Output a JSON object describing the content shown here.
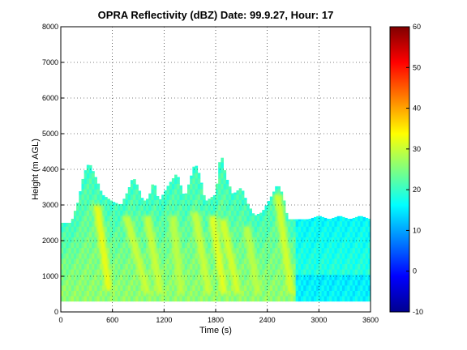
{
  "chart_data": {
    "type": "heatmap",
    "title": "OPRA Reflectivity (dBZ)  Date: 99.9.27, Hour: 17",
    "xlabel": "Time (s)",
    "ylabel": "Height (m AGL)",
    "xlim": [
      0,
      3600
    ],
    "ylim": [
      0,
      8000
    ],
    "x_ticks": [
      "0",
      "600",
      "1200",
      "1800",
      "2400",
      "3000",
      "3600"
    ],
    "y_ticks": [
      "0",
      "1000",
      "2000",
      "3000",
      "4000",
      "5000",
      "6000",
      "7000",
      "8000"
    ],
    "grid": "dotted",
    "colorbar": {
      "range": [
        -10,
        60
      ],
      "ticks": [
        "-10",
        "0",
        "10",
        "20",
        "30",
        "40",
        "50",
        "60"
      ],
      "colormap": "jet"
    },
    "echo_top_profile": [
      {
        "t": 0,
        "top": 2500
      },
      {
        "t": 120,
        "top": 2500
      },
      {
        "t": 200,
        "top": 3100
      },
      {
        "t": 270,
        "top": 3900
      },
      {
        "t": 330,
        "top": 4200
      },
      {
        "t": 420,
        "top": 3700
      },
      {
        "t": 480,
        "top": 3300
      },
      {
        "t": 600,
        "top": 3100
      },
      {
        "t": 700,
        "top": 3000
      },
      {
        "t": 780,
        "top": 3400
      },
      {
        "t": 840,
        "top": 3800
      },
      {
        "t": 900,
        "top": 3500
      },
      {
        "t": 960,
        "top": 3100
      },
      {
        "t": 1020,
        "top": 3200
      },
      {
        "t": 1080,
        "top": 3700
      },
      {
        "t": 1140,
        "top": 3100
      },
      {
        "t": 1260,
        "top": 3600
      },
      {
        "t": 1350,
        "top": 3900
      },
      {
        "t": 1440,
        "top": 3200
      },
      {
        "t": 1560,
        "top": 4200
      },
      {
        "t": 1620,
        "top": 3800
      },
      {
        "t": 1680,
        "top": 3100
      },
      {
        "t": 1800,
        "top": 3300
      },
      {
        "t": 1860,
        "top": 4500
      },
      {
        "t": 1920,
        "top": 3800
      },
      {
        "t": 2000,
        "top": 3300
      },
      {
        "t": 2100,
        "top": 3500
      },
      {
        "t": 2160,
        "top": 3100
      },
      {
        "t": 2250,
        "top": 2700
      },
      {
        "t": 2340,
        "top": 2800
      },
      {
        "t": 2460,
        "top": 3300
      },
      {
        "t": 2520,
        "top": 3600
      },
      {
        "t": 2580,
        "top": 3300
      },
      {
        "t": 2640,
        "top": 2600
      },
      {
        "t": 2760,
        "top": 2600
      },
      {
        "t": 2880,
        "top": 2600
      },
      {
        "t": 3000,
        "top": 2700
      },
      {
        "t": 3120,
        "top": 2600
      },
      {
        "t": 3240,
        "top": 2700
      },
      {
        "t": 3360,
        "top": 2600
      },
      {
        "t": 3480,
        "top": 2700
      },
      {
        "t": 3600,
        "top": 2600
      }
    ],
    "core_streaks": [
      {
        "t_top": 420,
        "z_top": 3000,
        "t_bot": 560,
        "z_bot": 600,
        "peak_dbz": 34
      },
      {
        "t_top": 760,
        "z_top": 2700,
        "t_bot": 1010,
        "z_bot": 500,
        "peak_dbz": 31
      },
      {
        "t_top": 1000,
        "z_top": 2700,
        "t_bot": 1160,
        "z_bot": 500,
        "peak_dbz": 31
      },
      {
        "t_top": 1300,
        "z_top": 2700,
        "t_bot": 1400,
        "z_bot": 500,
        "peak_dbz": 30
      },
      {
        "t_top": 1560,
        "z_top": 2800,
        "t_bot": 1720,
        "z_bot": 500,
        "peak_dbz": 31
      },
      {
        "t_top": 1760,
        "z_top": 2700,
        "t_bot": 1900,
        "z_bot": 500,
        "peak_dbz": 33
      },
      {
        "t_top": 1880,
        "z_top": 2600,
        "t_bot": 2060,
        "z_bot": 500,
        "peak_dbz": 32
      },
      {
        "t_top": 2160,
        "z_top": 2400,
        "t_bot": 2290,
        "z_bot": 500,
        "peak_dbz": 30
      },
      {
        "t_top": 2520,
        "z_top": 3300,
        "t_bot": 2680,
        "z_bot": 500,
        "peak_dbz": 32
      }
    ]
  }
}
